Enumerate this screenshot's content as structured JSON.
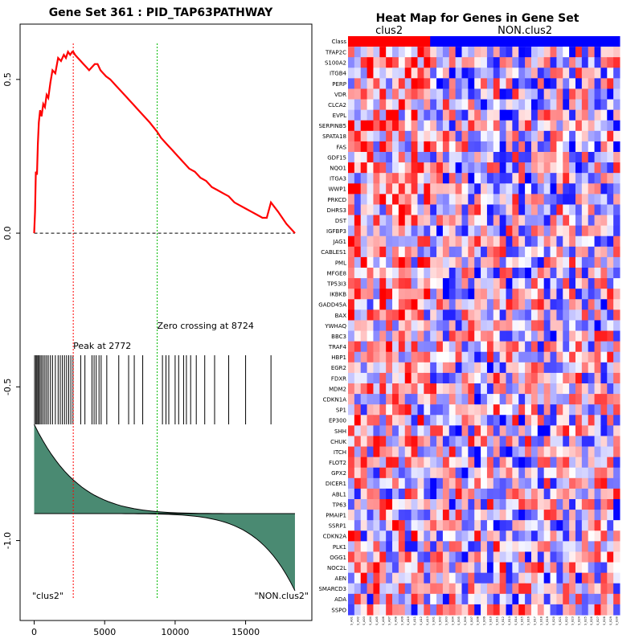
{
  "chart_data": [
    {
      "type": "line",
      "title": "Gene Set  361 : PID_TAP63PATHWAY",
      "xlabel": "",
      "ylabel": "",
      "xlim": [
        -1000,
        19700
      ],
      "ylim": [
        -1.26,
        0.68
      ],
      "x_ticks": [
        0,
        5000,
        10000,
        15000
      ],
      "x_tick_labels": [
        "0",
        "5000",
        "10000",
        "15000"
      ],
      "y_ticks": [
        0.5,
        0.0,
        -0.5,
        -1.0
      ],
      "y_tick_labels": [
        "0.5",
        "0.0",
        "-0.5",
        "-1.0"
      ],
      "n_genes": 18700,
      "series": [
        {
          "style": "red-line",
          "x": [
            0,
            60,
            120,
            200,
            260,
            330,
            420,
            520,
            640,
            760,
            880,
            1000,
            1150,
            1300,
            1500,
            1700,
            1900,
            2100,
            2250,
            2400,
            2550,
            2700,
            2772,
            2900,
            3100,
            3300,
            3500,
            3700,
            3900,
            4100,
            4300,
            4500,
            4700,
            4900,
            5100,
            5400,
            5800,
            6200,
            6600,
            7000,
            7400,
            7800,
            8200,
            8724,
            9000,
            9400,
            9800,
            10200,
            10600,
            11000,
            11400,
            11800,
            12200,
            12600,
            13000,
            13400,
            13800,
            14200,
            14600,
            15000,
            15400,
            15800,
            16200,
            16500,
            16800,
            17300,
            17900,
            18500
          ],
          "y": [
            0.0,
            0.07,
            0.2,
            0.19,
            0.29,
            0.36,
            0.4,
            0.38,
            0.42,
            0.41,
            0.45,
            0.44,
            0.49,
            0.53,
            0.52,
            0.57,
            0.56,
            0.58,
            0.57,
            0.59,
            0.58,
            0.59,
            0.59,
            0.58,
            0.57,
            0.56,
            0.55,
            0.54,
            0.53,
            0.54,
            0.55,
            0.55,
            0.53,
            0.52,
            0.51,
            0.5,
            0.48,
            0.46,
            0.44,
            0.42,
            0.4,
            0.38,
            0.36,
            0.33,
            0.31,
            0.29,
            0.27,
            0.25,
            0.23,
            0.21,
            0.2,
            0.18,
            0.17,
            0.15,
            0.14,
            0.13,
            0.12,
            0.1,
            0.09,
            0.08,
            0.07,
            0.06,
            0.05,
            0.05,
            0.1,
            0.07,
            0.03,
            0.0
          ]
        }
      ],
      "hit_positions": [
        30,
        120,
        190,
        260,
        340,
        430,
        530,
        640,
        760,
        880,
        1000,
        1150,
        1300,
        1500,
        1700,
        1850,
        2000,
        2150,
        2300,
        2450,
        2600,
        2750,
        3300,
        3600,
        4100,
        4250,
        4400,
        4600,
        4750,
        5150,
        6000,
        6700,
        7100,
        7700,
        9100,
        9350,
        9550,
        10000,
        10250,
        10600,
        10800,
        11100,
        11500,
        12100,
        12800,
        13800,
        15000,
        16800
      ],
      "annotations": [
        {
          "label": "Peak at 2772",
          "x": 2772,
          "color": "#ff0000"
        },
        {
          "label": "Zero crossing at 8724",
          "x": 8724,
          "color": "#00bb00"
        }
      ],
      "class_labels": [
        "\"clus2\"",
        "\"NON.clus2\""
      ],
      "colors": {
        "es_line": "#ff0000",
        "ranked_fill": "#4a8a72",
        "peak_line": "#ff0000",
        "zero_line": "#00bb00"
      }
    },
    {
      "type": "heatmap",
      "title": "Heat Map for Genes in Gene Set",
      "row_header": "Class",
      "class_groups": [
        {
          "name": "clus2",
          "count": 13,
          "color": "#ff0000"
        },
        {
          "name": "NON.clus2",
          "count": 30,
          "color": "#0000ff"
        }
      ],
      "genes": [
        "TFAP2C",
        "S100A2",
        "ITGB4",
        "PERP",
        "VDR",
        "CLCA2",
        "EVPL",
        "SERPINB5",
        "SPATA18",
        "FAS",
        "GDF15",
        "NQO1",
        "ITGA3",
        "WWP1",
        "PRKCD",
        "DHRS3",
        "DST",
        "IGFBP3",
        "JAG1",
        "CABLES1",
        "PML",
        "MFGE8",
        "TP53I3",
        "IKBKB",
        "GADD45A",
        "BAX",
        "YWHAQ",
        "BBC3",
        "TRAF4",
        "HBP1",
        "EGR2",
        "FDXR",
        "MDM2",
        "CDKN1A",
        "SP1",
        "EP300",
        "SHH",
        "CHUK",
        "ITCH",
        "FLOT2",
        "GPX2",
        "DICER1",
        "ABL1",
        "TP63",
        "PMAIP1",
        "SSRP1",
        "CDKN2A",
        "PLK1",
        "OGG1",
        "NOC2L",
        "AEN",
        "SMARCD3",
        "ADA",
        "SSPO"
      ],
      "samples": [
        "S_A01",
        "S_A02",
        "S_A03",
        "S_A04",
        "S_A05",
        "S_A06",
        "S_A07",
        "S_A08",
        "S_A09",
        "S_A10",
        "S_A11",
        "S_A12",
        "S_A13",
        "S_B01",
        "S_B02",
        "S_B03",
        "S_B04",
        "S_B05",
        "S_B06",
        "S_B07",
        "S_B08",
        "S_B09",
        "S_B10",
        "S_B11",
        "S_B12",
        "S_B13",
        "S_B14",
        "S_B15",
        "S_B16",
        "S_B17",
        "S_B18",
        "S_B19",
        "S_B20",
        "S_B21",
        "S_B22",
        "S_B23",
        "S_B24",
        "S_B25",
        "S_B26",
        "S_B27",
        "S_B28",
        "S_B29",
        "S_B30"
      ],
      "color_scale": {
        "low": "#0000ff",
        "mid": "#ffffff",
        "high": "#ff0000"
      }
    }
  ]
}
